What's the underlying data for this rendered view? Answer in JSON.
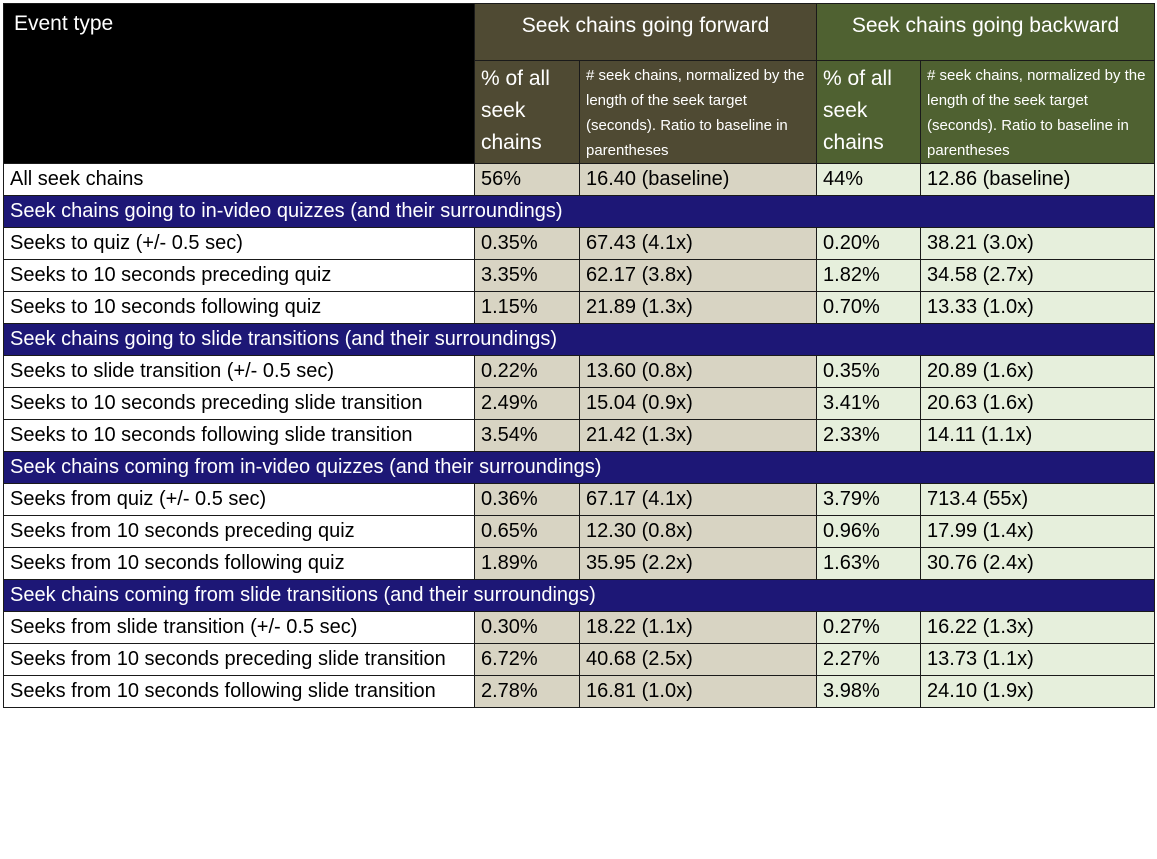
{
  "header": {
    "event_type": "Event type",
    "forward": "Seek chains going forward",
    "backward": "Seek chains going backward",
    "pct": "% of all seek chains",
    "norm": "# seek chains, normalized by the length of the seek target (seconds). Ratio to baseline in parentheses"
  },
  "baseline": {
    "label": "All seek chains",
    "fwd_pct": "56%",
    "fwd_norm": "16.40 (baseline)",
    "bwd_pct": "44%",
    "bwd_norm": "12.86 (baseline)"
  },
  "sections": [
    {
      "title": "Seek chains going to in-video quizzes (and their surroundings)",
      "rows": [
        {
          "label": "Seeks to quiz (+/- 0.5 sec)",
          "label_bold": true,
          "fwd_pct": "0.35%",
          "fwd_norm": "67.43 (4.1x)",
          "fwd_norm_bold": true,
          "bwd_pct": "0.20%",
          "bwd_norm": "38.21 (3.0x)",
          "bwd_norm_bold": false
        },
        {
          "label": "Seeks to 10 seconds preceding quiz",
          "label_bold": true,
          "fwd_pct": "3.35%",
          "fwd_norm": "62.17 (3.8x)",
          "fwd_norm_bold": true,
          "bwd_pct": "1.82%",
          "bwd_norm": "34.58 (2.7x)",
          "bwd_norm_bold": false
        },
        {
          "label": "Seeks to 10 seconds following quiz",
          "label_bold": false,
          "fwd_pct": "1.15%",
          "fwd_norm": "21.89 (1.3x)",
          "fwd_norm_bold": false,
          "bwd_pct": "0.70%",
          "bwd_norm": "13.33 (1.0x)",
          "bwd_norm_bold": false
        }
      ]
    },
    {
      "title": "Seek chains going to slide transitions (and their surroundings)",
      "rows": [
        {
          "label": "Seeks to slide transition (+/- 0.5 sec)",
          "label_bold": false,
          "fwd_pct": "0.22%",
          "fwd_norm": "13.60 (0.8x)",
          "fwd_norm_bold": false,
          "bwd_pct": "0.35%",
          "bwd_norm": "20.89 (1.6x)",
          "bwd_norm_bold": false
        },
        {
          "label": "Seeks to 10 seconds preceding slide transition",
          "label_bold": false,
          "fwd_pct": "2.49%",
          "fwd_norm": "15.04 (0.9x)",
          "fwd_norm_bold": false,
          "bwd_pct": "3.41%",
          "bwd_norm": "20.63 (1.6x)",
          "bwd_norm_bold": false
        },
        {
          "label": "Seeks to 10 seconds following slide transition",
          "label_bold": false,
          "fwd_pct": "3.54%",
          "fwd_norm": "21.42 (1.3x)",
          "fwd_norm_bold": false,
          "bwd_pct": "2.33%",
          "bwd_norm": "14.11 (1.1x)",
          "bwd_norm_bold": false
        }
      ]
    },
    {
      "title": "Seek chains coming from in-video quizzes (and their surroundings)",
      "rows": [
        {
          "label": "Seeks from quiz (+/- 0.5 sec)",
          "label_bold": true,
          "fwd_pct": "0.36%",
          "fwd_norm": "67.17 (4.1x)",
          "fwd_norm_bold": true,
          "bwd_pct": "3.79%",
          "bwd_norm": "713.4 (55x)",
          "bwd_norm_bold": true
        },
        {
          "label": "Seeks from 10 seconds preceding quiz",
          "label_bold": false,
          "fwd_pct": "0.65%",
          "fwd_norm": "12.30 (0.8x)",
          "fwd_norm_bold": false,
          "bwd_pct": "0.96%",
          "bwd_norm": "17.99 (1.4x)",
          "bwd_norm_bold": false
        },
        {
          "label": "Seeks from 10 seconds following quiz",
          "label_bold": false,
          "fwd_pct": "1.89%",
          "fwd_norm": "35.95 (2.2x)",
          "fwd_norm_bold": false,
          "bwd_pct": "1.63%",
          "bwd_norm": "30.76 (2.4x)",
          "bwd_norm_bold": false
        }
      ]
    },
    {
      "title": "Seek chains coming from slide transitions (and their surroundings)",
      "rows": [
        {
          "label": "Seeks from slide transition (+/- 0.5 sec)",
          "label_bold": false,
          "fwd_pct": "0.30%",
          "fwd_norm": "18.22 (1.1x)",
          "fwd_norm_bold": false,
          "bwd_pct": "0.27%",
          "bwd_norm": "16.22 (1.3x)",
          "bwd_norm_bold": false
        },
        {
          "label": "Seeks from 10 seconds preceding slide transition",
          "label_bold": false,
          "fwd_pct": "6.72%",
          "fwd_norm": "40.68 (2.5x)",
          "fwd_norm_bold": false,
          "bwd_pct": "2.27%",
          "bwd_norm": "13.73 (1.1x)",
          "bwd_norm_bold": false
        },
        {
          "label": "Seeks from 10 seconds following slide transition",
          "label_bold": false,
          "fwd_pct": "2.78%",
          "fwd_norm": "16.81 (1.0x)",
          "fwd_norm_bold": false,
          "bwd_pct": "3.98%",
          "bwd_norm": "24.10 (1.9x)",
          "bwd_norm_bold": false
        }
      ]
    }
  ]
}
